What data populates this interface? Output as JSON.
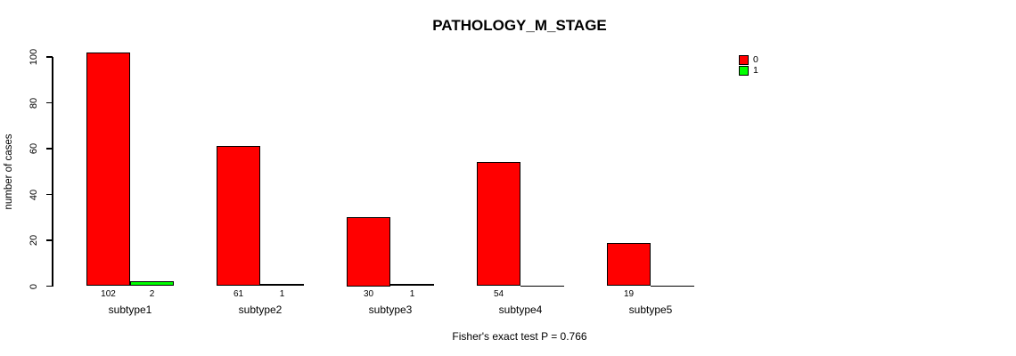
{
  "chart_data": {
    "type": "bar",
    "title": "PATHOLOGY_M_STAGE",
    "xlabel": "",
    "ylabel": "number of cases",
    "categories": [
      "subtype1",
      "subtype2",
      "subtype3",
      "subtype4",
      "subtype5"
    ],
    "series": [
      {
        "name": "0",
        "color": "#FF0000",
        "values": [
          102,
          61,
          30,
          54,
          19
        ]
      },
      {
        "name": "1",
        "color": "#00FF00",
        "values": [
          2,
          1,
          1,
          0,
          0
        ]
      }
    ],
    "yticks": [
      0,
      20,
      40,
      60,
      80,
      100
    ],
    "ylim": [
      0,
      100
    ],
    "grid": false,
    "legend_position": "top-right",
    "legend_entries": [
      {
        "label": "0",
        "color": "#FF0000"
      },
      {
        "label": "1",
        "color": "#00FF00"
      }
    ],
    "bar_value_label_rule": "value shown under each bar, omitted when 0",
    "annotation": "Fisher's exact test P = 0.766",
    "bar_border_color": "#000000",
    "background_color": "#FFFFFF"
  }
}
